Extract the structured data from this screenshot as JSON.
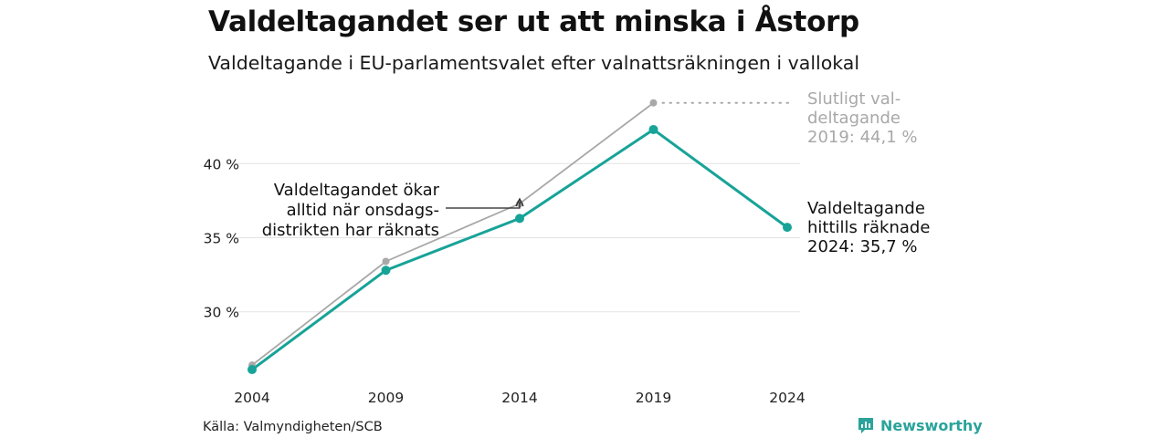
{
  "title": "Valdeltagandet ser ut att minska i Åstorp",
  "subtitle": "Valdeltagande i EU-parlamentsvalet efter valnattsräkningen i vallokal",
  "source": "Källa: Valmyndigheten/SCB",
  "brand": {
    "name": "Newsworthy",
    "icon": "newsworthy-logo-icon",
    "color": "#2aa39a"
  },
  "chart_data": {
    "type": "line",
    "x": [
      "2004",
      "2009",
      "2014",
      "2019",
      "2024"
    ],
    "series": [
      {
        "role": "preliminary",
        "color": "#17a398",
        "values": [
          26.1,
          32.8,
          36.3,
          42.3,
          35.7
        ]
      },
      {
        "role": "final",
        "color": "#a8a8a8",
        "values": [
          26.4,
          33.4,
          37.3,
          44.1,
          null
        ]
      }
    ],
    "y_ticks": [
      {
        "value": 30,
        "label": "30 %"
      },
      {
        "value": 35,
        "label": "35 %"
      },
      {
        "value": 40,
        "label": "40 %"
      }
    ],
    "ylim": [
      24.5,
      45.5
    ],
    "grid": "horizontal",
    "annotations": {
      "left": {
        "lines": [
          "Valdeltagandet ökar",
          "alltid när onsdags-",
          "distrikten har räknats"
        ],
        "points_to": "2014"
      },
      "final": {
        "lines": [
          "Slutligt val-",
          "deltagande",
          "2019: 44,1 %"
        ]
      },
      "current": {
        "lines": [
          "Valdeltagande",
          "hittills räknade",
          "2024: 35,7 %"
        ]
      }
    }
  }
}
